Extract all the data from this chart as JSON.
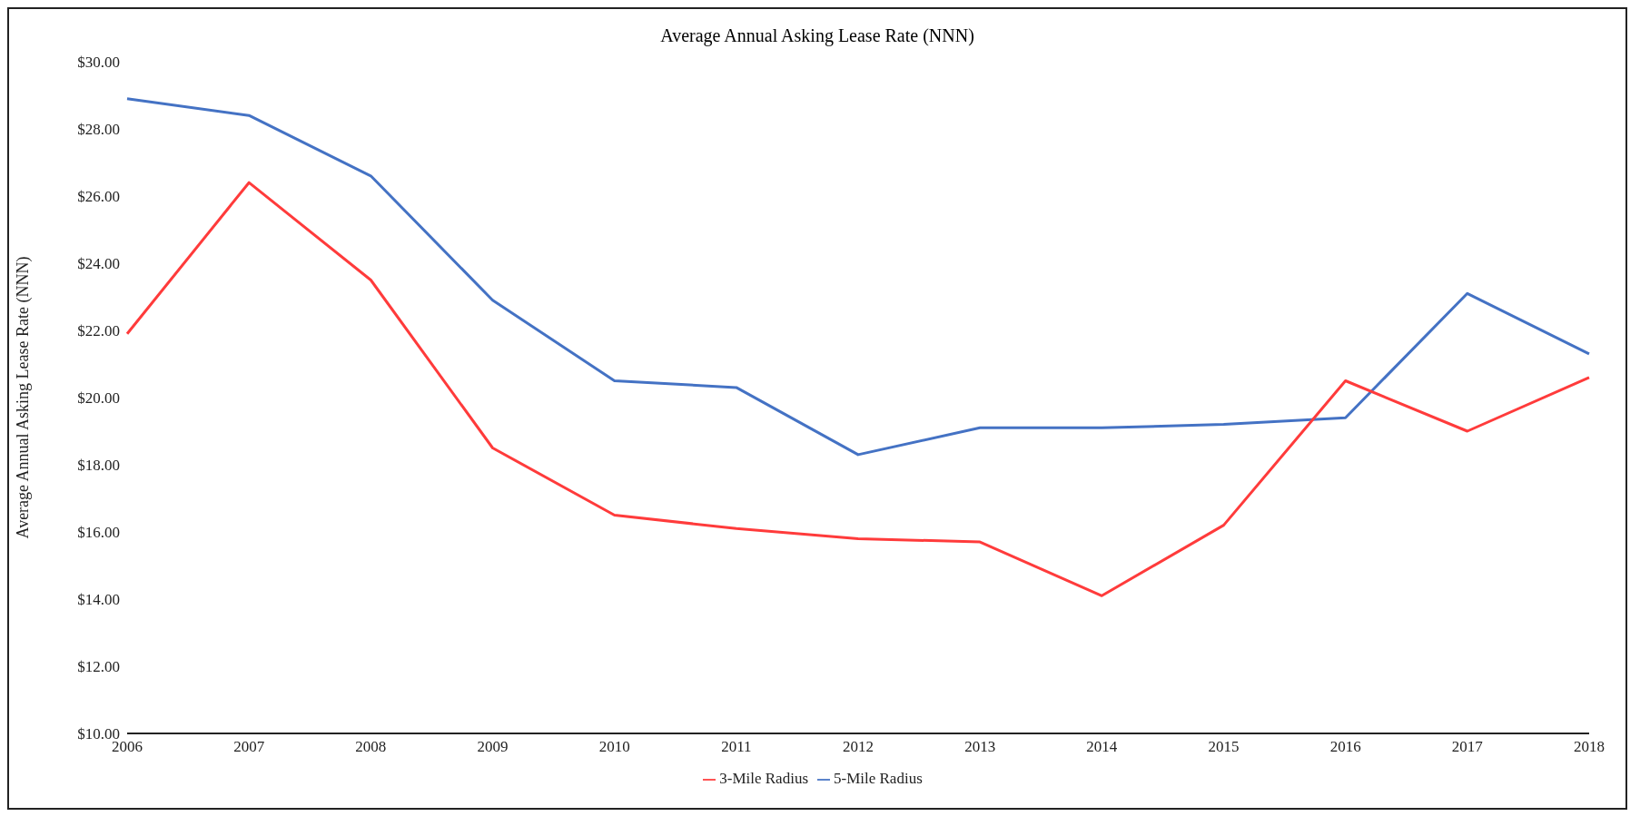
{
  "chart_data": {
    "type": "line",
    "title": "Average Annual Asking Lease Rate (NNN)",
    "ylabel": "Average Annual Asking Lease Rate (NNN)",
    "categories": [
      "2006",
      "2007",
      "2008",
      "2009",
      "2010",
      "2011",
      "2012",
      "2013",
      "2014",
      "2015",
      "2016",
      "2017",
      "2018"
    ],
    "series": [
      {
        "name": "5-Mile Radius",
        "color": "#4472c4",
        "values": [
          28.9,
          28.4,
          26.6,
          22.9,
          20.5,
          20.3,
          18.3,
          19.1,
          19.1,
          19.2,
          19.4,
          23.1,
          21.3
        ]
      },
      {
        "name": "3-Mile Radius",
        "color": "#ff3b3b",
        "values": [
          21.9,
          26.4,
          23.5,
          18.5,
          16.5,
          16.1,
          15.8,
          15.7,
          14.1,
          16.2,
          20.5,
          19.0,
          20.6
        ]
      }
    ],
    "ylim": [
      10,
      30
    ],
    "yticks": [
      {
        "value": 10,
        "label": "$10.00"
      },
      {
        "value": 12,
        "label": "$12.00"
      },
      {
        "value": 14,
        "label": "$14.00"
      },
      {
        "value": 16,
        "label": "$16.00"
      },
      {
        "value": 18,
        "label": "$18.00"
      },
      {
        "value": 20,
        "label": "$20.00"
      },
      {
        "value": 22,
        "label": "$22.00"
      },
      {
        "value": 24,
        "label": "$24.00"
      },
      {
        "value": 26,
        "label": "$26.00"
      },
      {
        "value": 28,
        "label": "$28.00"
      },
      {
        "value": 30,
        "label": "$30.00"
      }
    ],
    "grid": false,
    "legend": "bottom",
    "marker": "none",
    "line_style": "solid"
  }
}
